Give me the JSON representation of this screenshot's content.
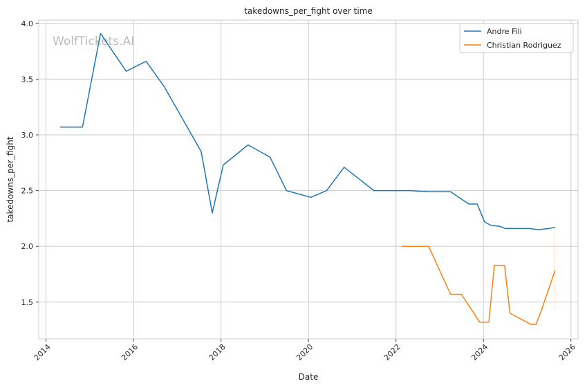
{
  "chart_data": {
    "type": "line",
    "title": "takedowns_per_fight over time",
    "xlabel": "Date",
    "ylabel": "takedowns_per_fight",
    "watermark": "WolfTickets.AI",
    "x_axis": "date",
    "xlim": [
      "2013-11-01",
      "2026-03-01"
    ],
    "ylim": [
      1.17,
      4.03
    ],
    "x_ticks": [
      "2014",
      "2016",
      "2018",
      "2020",
      "2022",
      "2024",
      "2026"
    ],
    "y_ticks": [
      "1.5",
      "2.0",
      "2.5",
      "3.0",
      "3.5",
      "4.0"
    ],
    "grid": true,
    "legend_position": "top-right",
    "series": [
      {
        "name": "Andre Fili",
        "color": "#1f77b4",
        "points": [
          [
            "2014-05-01",
            3.07
          ],
          [
            "2014-11-01",
            3.07
          ],
          [
            "2015-04-01",
            3.91
          ],
          [
            "2015-11-01",
            3.57
          ],
          [
            "2016-04-15",
            3.66
          ],
          [
            "2016-09-15",
            3.43
          ],
          [
            "2017-07-20",
            2.85
          ],
          [
            "2017-10-20",
            2.3
          ],
          [
            "2018-01-20",
            2.73
          ],
          [
            "2018-08-15",
            2.91
          ],
          [
            "2019-02-15",
            2.8
          ],
          [
            "2019-07-01",
            2.5
          ],
          [
            "2020-01-20",
            2.44
          ],
          [
            "2020-06-01",
            2.5
          ],
          [
            "2020-10-25",
            2.71
          ],
          [
            "2021-07-01",
            2.5
          ],
          [
            "2022-01-01",
            2.5
          ],
          [
            "2022-03-01",
            2.5
          ],
          [
            "2022-05-01",
            2.5
          ],
          [
            "2022-10-01",
            2.49
          ],
          [
            "2023-04-01",
            2.49
          ],
          [
            "2023-09-01",
            2.38
          ],
          [
            "2023-11-10",
            2.38
          ],
          [
            "2024-01-10",
            2.22
          ],
          [
            "2024-03-01",
            2.19
          ],
          [
            "2024-05-15",
            2.18
          ],
          [
            "2024-07-01",
            2.16
          ],
          [
            "2025-01-20",
            2.16
          ],
          [
            "2025-04-01",
            2.15
          ],
          [
            "2025-07-01",
            2.16
          ],
          [
            "2025-08-20",
            2.17
          ]
        ]
      },
      {
        "name": "Christian Rodriguez",
        "color": "#ff7f0e",
        "points": [
          [
            "2022-02-20",
            2.0
          ],
          [
            "2022-10-01",
            2.0
          ],
          [
            "2023-04-01",
            1.57
          ],
          [
            "2023-07-01",
            1.57
          ],
          [
            "2023-12-01",
            1.32
          ],
          [
            "2024-02-15",
            1.32
          ],
          [
            "2024-04-01",
            1.83
          ],
          [
            "2024-06-25",
            1.83
          ],
          [
            "2024-08-10",
            1.4
          ],
          [
            "2025-02-01",
            1.3
          ],
          [
            "2025-03-15",
            1.3
          ],
          [
            "2025-05-01",
            1.43
          ],
          [
            "2025-08-20",
            1.78
          ]
        ]
      }
    ]
  }
}
